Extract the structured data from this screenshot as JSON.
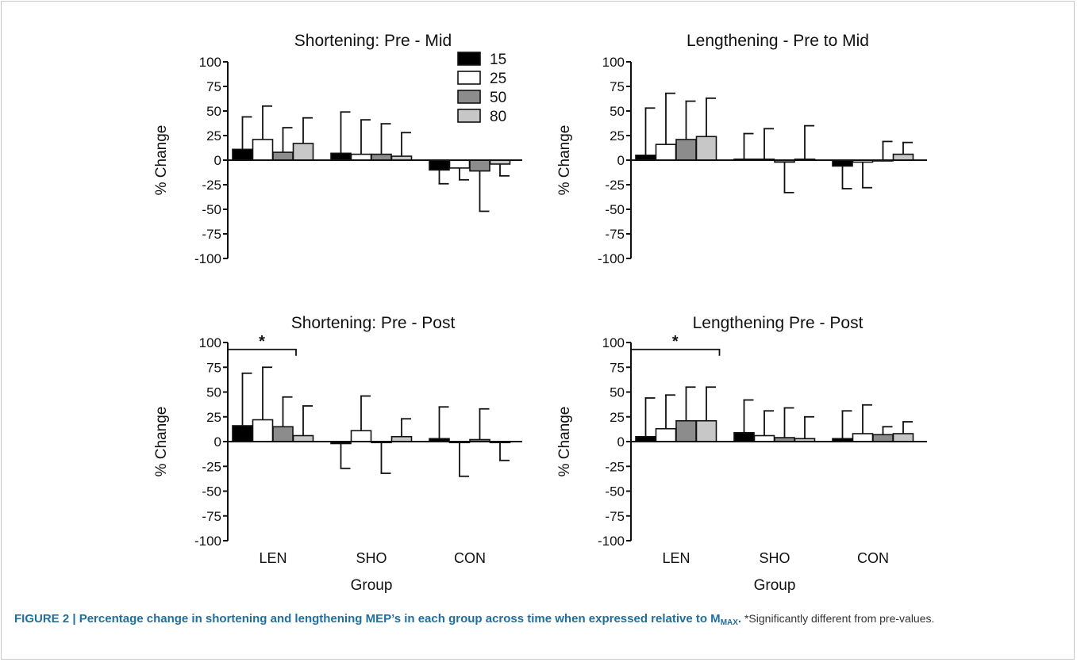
{
  "chart_data": [
    {
      "type": "bar",
      "title": "Shortening: Pre - Mid",
      "ylabel": "% Change",
      "xlabel": "",
      "ylim": [
        -100,
        100
      ],
      "yticks": [
        "100",
        "75",
        "50",
        "25",
        "0",
        "-25",
        "-50",
        "-75",
        "-100"
      ],
      "categories": [
        "LEN",
        "SHO",
        "CON"
      ],
      "show_category_labels": false,
      "legend": {
        "position": "top-right",
        "entries": [
          "15",
          "25",
          "50",
          "80"
        ]
      },
      "series": [
        {
          "name": "15",
          "values": [
            11,
            7,
            -10
          ],
          "error": [
            33,
            42,
            14
          ]
        },
        {
          "name": "25",
          "values": [
            21,
            6,
            -8
          ],
          "error": [
            34,
            35,
            12
          ]
        },
        {
          "name": "50",
          "values": [
            8,
            6,
            -11
          ],
          "error": [
            25,
            31,
            41
          ]
        },
        {
          "name": "80",
          "values": [
            17,
            4,
            -4
          ],
          "error": [
            26,
            24,
            12
          ]
        }
      ],
      "annotation": null
    },
    {
      "type": "bar",
      "title": "Lengthening - Pre to Mid",
      "ylabel": "% Change",
      "xlabel": "",
      "ylim": [
        -100,
        100
      ],
      "yticks": [
        "100",
        "75",
        "50",
        "25",
        "0",
        "-25",
        "-50",
        "-75",
        "-100"
      ],
      "categories": [
        "LEN",
        "SHO",
        "CON"
      ],
      "show_category_labels": false,
      "legend": null,
      "series": [
        {
          "name": "15",
          "values": [
            5,
            1,
            -6
          ],
          "error": [
            48,
            26,
            23
          ]
        },
        {
          "name": "25",
          "values": [
            16,
            1,
            -2
          ],
          "error": [
            52,
            31,
            26
          ]
        },
        {
          "name": "50",
          "values": [
            21,
            -2,
            0
          ],
          "error": [
            39,
            31,
            19
          ]
        },
        {
          "name": "80",
          "values": [
            24,
            1,
            6
          ],
          "error": [
            39,
            34,
            12
          ]
        }
      ],
      "annotation": null
    },
    {
      "type": "bar",
      "title": "Shortening: Pre - Post",
      "ylabel": "% Change",
      "xlabel": "Group",
      "ylim": [
        -100,
        100
      ],
      "yticks": [
        "100",
        "75",
        "50",
        "25",
        "0",
        "-25",
        "-50",
        "-75",
        "-100"
      ],
      "categories": [
        "LEN",
        "SHO",
        "CON"
      ],
      "show_category_labels": true,
      "legend": null,
      "series": [
        {
          "name": "15",
          "values": [
            16,
            -2,
            3
          ],
          "error": [
            53,
            25,
            32
          ]
        },
        {
          "name": "25",
          "values": [
            22,
            11,
            -1
          ],
          "error": [
            53,
            35,
            34
          ]
        },
        {
          "name": "50",
          "values": [
            15,
            -1,
            2
          ],
          "error": [
            30,
            31,
            31
          ]
        },
        {
          "name": "80",
          "values": [
            6,
            5,
            -1
          ],
          "error": [
            30,
            18,
            18
          ]
        }
      ],
      "annotation": {
        "text": "*",
        "from_series": 0,
        "to_series": 2,
        "category": 0
      }
    },
    {
      "type": "bar",
      "title": "Lengthening Pre - Post",
      "ylabel": "% Change",
      "xlabel": "Group",
      "ylim": [
        -100,
        100
      ],
      "yticks": [
        "100",
        "75",
        "50",
        "25",
        "0",
        "-25",
        "-50",
        "-75",
        "-100"
      ],
      "categories": [
        "LEN",
        "SHO",
        "CON"
      ],
      "show_category_labels": true,
      "legend": null,
      "series": [
        {
          "name": "15",
          "values": [
            5,
            9,
            3
          ],
          "error": [
            39,
            33,
            28
          ]
        },
        {
          "name": "25",
          "values": [
            13,
            6,
            8
          ],
          "error": [
            34,
            25,
            29
          ]
        },
        {
          "name": "50",
          "values": [
            21,
            4,
            7
          ],
          "error": [
            34,
            30,
            8
          ]
        },
        {
          "name": "80",
          "values": [
            21,
            3,
            8
          ],
          "error": [
            34,
            22,
            12
          ]
        }
      ],
      "annotation": {
        "text": "*",
        "from_series": 0,
        "to_series": 3,
        "category": 0
      }
    }
  ],
  "series_colors": [
    "#000000",
    "#ffffff",
    "#8c8c8c",
    "#c7c7c7"
  ],
  "caption": {
    "label": "FIGURE 2 | Percentage change in shortening and lengthening MEP’s in each group across time when expressed relative to M",
    "subscript": "MAX",
    "end": ".",
    "footnote": " *Significantly different from pre-values."
  }
}
